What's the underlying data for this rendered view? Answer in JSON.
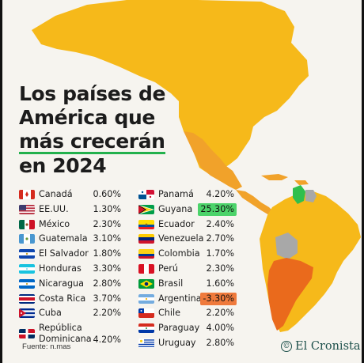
{
  "title": {
    "line1": "Los países de",
    "line2": "América que",
    "line3": "más crecerán",
    "line4": "en 2024"
  },
  "colors": {
    "background": "#f6f4ef",
    "map_yellow": "#f6b91a",
    "map_orange": "#f1a22a",
    "map_deep_orange": "#ea6a1c",
    "map_gray": "#a8a8a8",
    "map_green": "#2fbf4d",
    "title_underline": "#23b14d",
    "highlight_positive": "#4cd36a",
    "highlight_negative": "#ef7a3c",
    "brand": "#1c4f4a"
  },
  "countries_left": [
    {
      "name": "Canadá",
      "value": "0.60%",
      "flag": "canada-flag-icon"
    },
    {
      "name": "EE.UU.",
      "value": "1.30%",
      "flag": "usa-flag-icon"
    },
    {
      "name": "México",
      "value": "2.30%",
      "flag": "mexico-flag-icon"
    },
    {
      "name": "Guatemala",
      "value": "3.10%",
      "flag": "guatemala-flag-icon"
    },
    {
      "name": "El Salvador",
      "value": "1.80%",
      "flag": "el-salvador-flag-icon"
    },
    {
      "name": "Honduras",
      "value": "3.30%",
      "flag": "honduras-flag-icon"
    },
    {
      "name": "Nicaragua",
      "value": "2.80%",
      "flag": "nicaragua-flag-icon"
    },
    {
      "name": "Costa Rica",
      "value": "3.70%",
      "flag": "costa-rica-flag-icon"
    },
    {
      "name": "Cuba",
      "value": "2.20%",
      "flag": "cuba-flag-icon"
    },
    {
      "name": "República",
      "name2": "Dominicana",
      "value": "4.20%",
      "flag": "dominican-republic-flag-icon"
    }
  ],
  "countries_right": [
    {
      "name": "Panamá",
      "value": "4.20%",
      "flag": "panama-flag-icon"
    },
    {
      "name": "Guyana",
      "value": "25.30%",
      "flag": "guyana-flag-icon",
      "highlight": "positive"
    },
    {
      "name": "Ecuador",
      "value": "2.40%",
      "flag": "ecuador-flag-icon"
    },
    {
      "name": "Venezuela",
      "value": "2.70%",
      "flag": "venezuela-flag-icon"
    },
    {
      "name": "Colombia",
      "value": "1.70%",
      "flag": "colombia-flag-icon"
    },
    {
      "name": "Perú",
      "value": "2.30%",
      "flag": "peru-flag-icon"
    },
    {
      "name": "Brasil",
      "value": "1.60%",
      "flag": "brazil-flag-icon"
    },
    {
      "name": "Argentina",
      "value": "-3.30%",
      "flag": "argentina-flag-icon",
      "highlight": "negative"
    },
    {
      "name": "Chile",
      "value": "2.20%",
      "flag": "chile-flag-icon"
    },
    {
      "name": "Paraguay",
      "value": "4.00%",
      "flag": "paraguay-flag-icon"
    },
    {
      "name": "Uruguay",
      "value": "2.80%",
      "flag": "uruguay-flag-icon"
    }
  ],
  "source": "Fuente: n.mas",
  "brand": "El Cronista"
}
